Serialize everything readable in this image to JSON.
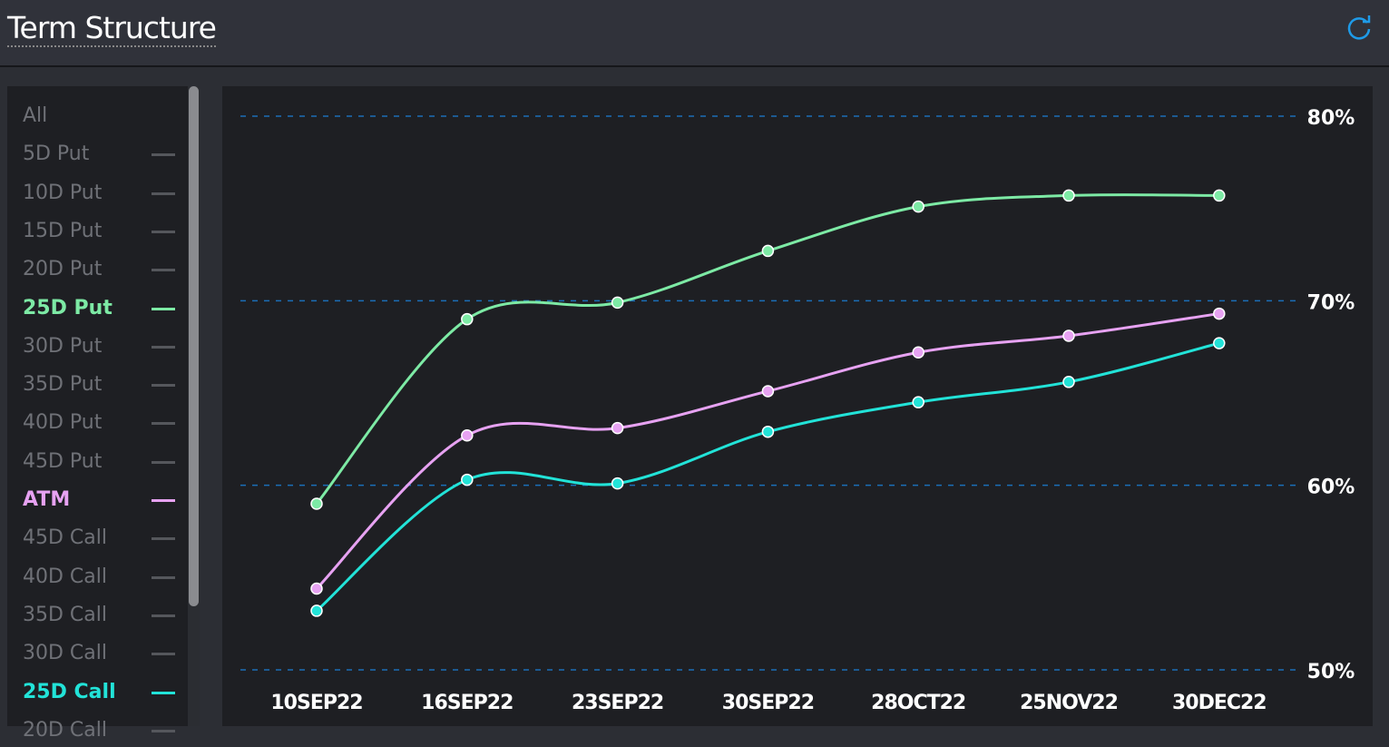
{
  "header": {
    "title": "Term Structure",
    "refresh_icon": "refresh-icon"
  },
  "legend_list": [
    {
      "label": "All",
      "active": false
    },
    {
      "label": "5D Put",
      "active": false
    },
    {
      "label": "10D Put",
      "active": false
    },
    {
      "label": "15D Put",
      "active": false
    },
    {
      "label": "20D Put",
      "active": false
    },
    {
      "label": "25D Put",
      "active": true,
      "color": "#7deaa5"
    },
    {
      "label": "30D Put",
      "active": false
    },
    {
      "label": "35D Put",
      "active": false
    },
    {
      "label": "40D Put",
      "active": false
    },
    {
      "label": "45D Put",
      "active": false
    },
    {
      "label": "ATM",
      "active": true,
      "color": "#e7a2f2"
    },
    {
      "label": "45D Call",
      "active": false
    },
    {
      "label": "40D Call",
      "active": false
    },
    {
      "label": "35D Call",
      "active": false
    },
    {
      "label": "30D Call",
      "active": false
    },
    {
      "label": "25D Call",
      "active": true,
      "color": "#22e3d8"
    },
    {
      "label": "20D Call",
      "active": false
    }
  ],
  "chart_data": {
    "type": "line",
    "categories": [
      "10SEP22",
      "16SEP22",
      "23SEP22",
      "30SEP22",
      "28OCT22",
      "25NOV22",
      "30DEC22"
    ],
    "ylim": [
      50,
      80
    ],
    "yticks": [
      50,
      60,
      70,
      80
    ],
    "ytick_labels": [
      "50%",
      "60%",
      "70%",
      "80%"
    ],
    "y_axis_position": "right",
    "grid": true,
    "series": [
      {
        "name": "25D Put",
        "color": "#7deaa5",
        "values": [
          59.0,
          69.0,
          69.9,
          72.7,
          75.1,
          75.7,
          75.7
        ]
      },
      {
        "name": "ATM",
        "color": "#e7a2f2",
        "values": [
          54.4,
          62.7,
          63.1,
          65.1,
          67.2,
          68.1,
          69.3
        ]
      },
      {
        "name": "25D Call",
        "color": "#22e3d8",
        "values": [
          53.2,
          60.3,
          60.1,
          62.9,
          64.5,
          65.6,
          67.7
        ]
      }
    ]
  }
}
